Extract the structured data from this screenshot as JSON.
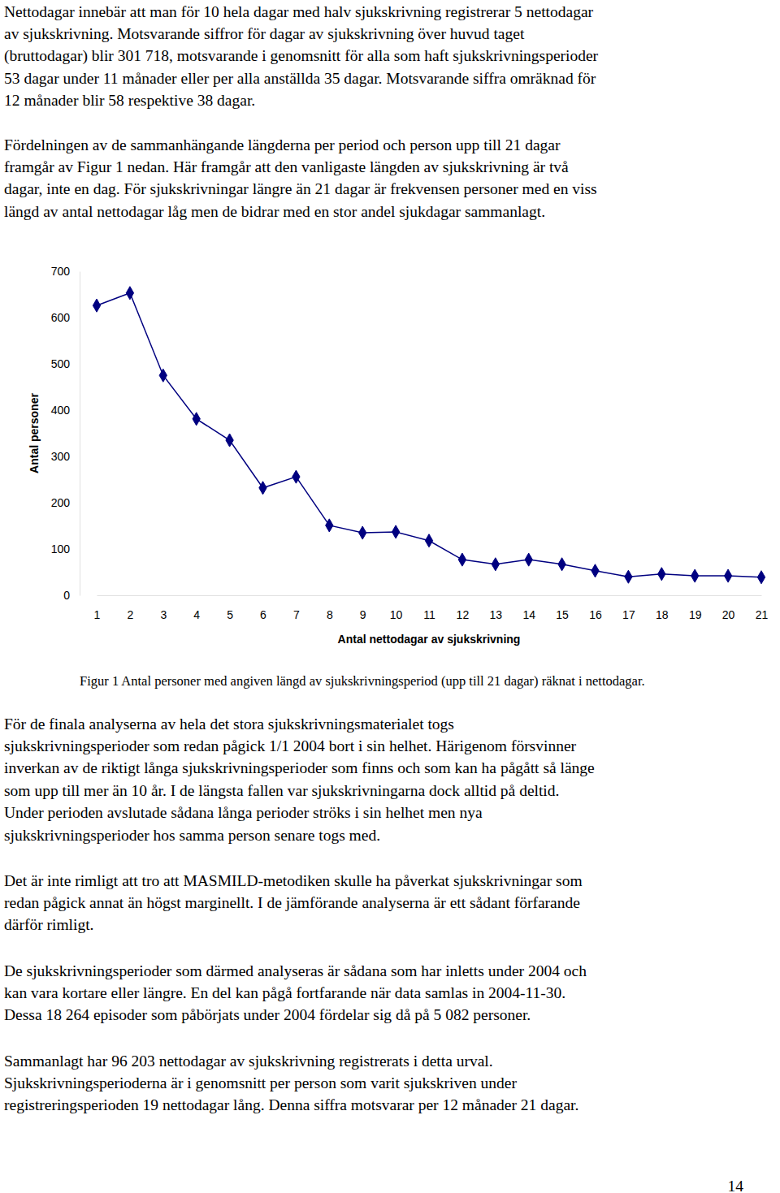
{
  "paragraphs": [
    [
      "Nettodagar innebär att man för 10 hela dagar med halv sjukskrivning registrerar 5 nettodagar",
      "av sjukskrivning. Motsvarande siffror för dagar av sjukskrivning över huvud taget",
      "(bruttodagar) blir 301 718, motsvarande i genomsnitt för alla som haft sjukskrivningsperioder",
      "53 dagar under 11 månader eller per alla anställda 35 dagar. Motsvarande siffra omräknad för",
      "12 månader blir 58 respektive 38 dagar."
    ],
    [
      "Fördelningen av de sammanhängande längderna per period och person upp till 21 dagar",
      "framgår av Figur 1 nedan. Här framgår att den vanligaste längden av sjukskrivning är två",
      "dagar, inte en dag. För sjukskrivningar längre än 21 dagar är frekvensen personer med en viss",
      "längd av antal nettodagar låg men de bidrar med en stor andel sjukdagar sammanlagt."
    ],
    [
      "För de finala analyserna av hela det stora sjukskrivningsmaterialet togs",
      "sjukskrivningsperioder som redan pågick 1/1 2004 bort i sin helhet. Härigenom försvinner",
      "inverkan av de riktigt långa sjukskrivningsperioder som finns och som kan ha pågått så länge",
      "som upp till mer än 10 år. I de längsta fallen var sjukskrivningarna dock alltid på deltid.",
      "Under perioden avslutade sådana långa perioder ströks i sin helhet men nya",
      "sjukskrivningsperioder hos samma person senare togs med."
    ],
    [
      "Det är inte rimligt att tro att MASMILD-metodiken skulle ha påverkat sjukskrivningar som",
      "redan pågick annat än högst marginellt. I de jämförande analyserna är ett sådant förfarande",
      "därför rimligt."
    ],
    [
      "De sjukskrivningsperioder som därmed analyseras är sådana som har inletts under 2004 och",
      "kan vara kortare eller längre. En del kan pågå fortfarande när data samlas in 2004-11-30.",
      "Dessa 18 264 episoder som påbörjats under 2004 fördelar sig då på 5 082 personer."
    ],
    [
      "Sammanlagt har 96 203 nettodagar av sjukskrivning registrerats i detta urval.",
      "Sjukskrivningsperioderna är i genomsnitt per person som varit sjukskriven under",
      "registreringsperioden 19 nettodagar lång. Denna siffra motsvarar per 12 månader 21 dagar."
    ]
  ],
  "chart_data": {
    "type": "line",
    "x_label": "Antal nettodagar av sjukskrivning",
    "y_label": "Antal personer",
    "categories": [
      "1",
      "2",
      "3",
      "4",
      "5",
      "6",
      "7",
      "8",
      "9",
      "10",
      "11",
      "12",
      "13",
      "14",
      "15",
      "16",
      "17",
      "18",
      "19",
      "20",
      "21"
    ],
    "values": [
      626,
      653,
      475,
      381,
      335,
      232,
      256,
      151,
      135,
      137,
      118,
      77,
      67,
      77,
      67,
      53,
      40,
      46,
      42,
      42,
      39
    ],
    "color": "#000080",
    "marker": "diamond",
    "line_style": "solid",
    "ylim": [
      0,
      700
    ],
    "yticks": [
      0,
      100,
      200,
      300,
      400,
      500,
      600,
      700
    ],
    "grid": false
  },
  "caption": "Figur 1 Antal personer med angiven längd av sjukskrivningsperiod (upp till 21 dagar) räknat i nettodagar.",
  "page_number": "14"
}
